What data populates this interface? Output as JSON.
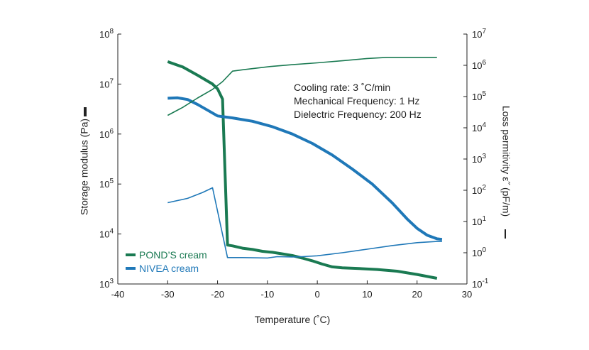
{
  "chart_data": {
    "type": "line",
    "x_axis": {
      "label": "Temperature (˚C)",
      "range": [
        -40,
        30
      ],
      "ticks": [
        -40,
        -30,
        -20,
        -10,
        0,
        10,
        20,
        30
      ],
      "tick_labels": [
        "-40",
        "-30",
        "-20",
        "-10",
        "0",
        "10",
        "20",
        "30"
      ]
    },
    "y_left": {
      "label": "Storage modulus (Pa)",
      "scale": "log",
      "range": [
        1000,
        100000000
      ],
      "ticks": [
        {
          "base": "10",
          "exp": "3"
        },
        {
          "base": "10",
          "exp": "4"
        },
        {
          "base": "10",
          "exp": "5"
        },
        {
          "base": "10",
          "exp": "6"
        },
        {
          "base": "10",
          "exp": "7"
        },
        {
          "base": "10",
          "exp": "8"
        }
      ]
    },
    "y_right": {
      "label": "Loss permitivity ε˝ (pF/m)",
      "scale": "log",
      "range": [
        0.1,
        10000000
      ],
      "ticks": [
        {
          "base": "10",
          "exp": "-1"
        },
        {
          "base": "10",
          "exp": "0"
        },
        {
          "base": "10",
          "exp": "1"
        },
        {
          "base": "10",
          "exp": "2"
        },
        {
          "base": "10",
          "exp": "3"
        },
        {
          "base": "10",
          "exp": "4"
        },
        {
          "base": "10",
          "exp": "5"
        },
        {
          "base": "10",
          "exp": "6"
        },
        {
          "base": "10",
          "exp": "7"
        }
      ]
    },
    "annotations": [
      "Cooling rate: 3 ˚C/min",
      "Mechanical Frequency: 1 Hz",
      "Dielectric Frequency: 200 Hz"
    ],
    "legend": {
      "placement": "bottom-left",
      "entries": [
        {
          "label": "POND’S cream",
          "color": "#1a7a52"
        },
        {
          "label": "NIVEA cream",
          "color": "#1f78b8"
        }
      ]
    },
    "series": [
      {
        "name": "POND’S cream",
        "measure": "Storage modulus",
        "axis": "left",
        "color": "#1a7a52",
        "line": "thick",
        "points": [
          [
            -30,
            28000000
          ],
          [
            -27,
            22000000
          ],
          [
            -24,
            15000000
          ],
          [
            -21,
            10000000
          ],
          [
            -20,
            8000000
          ],
          [
            -19,
            5000000
          ],
          [
            -18,
            6000
          ],
          [
            -17,
            5800
          ],
          [
            -15,
            5200
          ],
          [
            -13,
            4900
          ],
          [
            -11,
            4500
          ],
          [
            -9,
            4300
          ],
          [
            -7,
            4000
          ],
          [
            -5,
            3700
          ],
          [
            -3,
            3300
          ],
          [
            -1,
            2900
          ],
          [
            1,
            2500
          ],
          [
            3,
            2200
          ],
          [
            5,
            2100
          ],
          [
            8,
            2050
          ],
          [
            12,
            1950
          ],
          [
            16,
            1800
          ],
          [
            20,
            1550
          ],
          [
            24,
            1300
          ]
        ]
      },
      {
        "name": "NIVEA cream",
        "measure": "Storage modulus",
        "axis": "left",
        "color": "#1f78b8",
        "line": "thick",
        "points": [
          [
            -30,
            5200000
          ],
          [
            -28,
            5300000
          ],
          [
            -26,
            4900000
          ],
          [
            -24,
            3900000
          ],
          [
            -22,
            3000000
          ],
          [
            -20,
            2300000
          ],
          [
            -17,
            2100000
          ],
          [
            -13,
            1800000
          ],
          [
            -9,
            1400000
          ],
          [
            -5,
            1000000
          ],
          [
            -1,
            650000
          ],
          [
            3,
            380000
          ],
          [
            7,
            200000
          ],
          [
            11,
            100000
          ],
          [
            15,
            42000
          ],
          [
            18,
            20000
          ],
          [
            20,
            13000
          ],
          [
            22,
            9500
          ],
          [
            24,
            8000
          ],
          [
            25,
            7800
          ]
        ]
      },
      {
        "name": "POND’S cream",
        "measure": "Loss permitivity",
        "axis": "right",
        "color": "#1a7a52",
        "line": "thin",
        "points": [
          [
            -30,
            25000
          ],
          [
            -27,
            45000
          ],
          [
            -24,
            90000
          ],
          [
            -21,
            170000
          ],
          [
            -19,
            300000
          ],
          [
            -17,
            650000
          ],
          [
            -15,
            720000
          ],
          [
            -12,
            820000
          ],
          [
            -9,
            930000
          ],
          [
            -5,
            1050000
          ],
          [
            0,
            1200000
          ],
          [
            5,
            1400000
          ],
          [
            10,
            1650000
          ],
          [
            14,
            1800000
          ],
          [
            18,
            1800000
          ],
          [
            24,
            1800000
          ]
        ]
      },
      {
        "name": "NIVEA cream",
        "measure": "Loss permitivity",
        "axis": "right",
        "color": "#1f78b8",
        "line": "thin",
        "points": [
          [
            -30,
            40
          ],
          [
            -26,
            55
          ],
          [
            -23,
            85
          ],
          [
            -21,
            120
          ],
          [
            -18,
            0.7
          ],
          [
            -15,
            0.7
          ],
          [
            -10,
            0.68
          ],
          [
            -8,
            0.75
          ],
          [
            -5,
            0.73
          ],
          [
            -3,
            0.75
          ],
          [
            0,
            0.8
          ],
          [
            5,
            1.0
          ],
          [
            10,
            1.3
          ],
          [
            15,
            1.7
          ],
          [
            20,
            2.1
          ],
          [
            24,
            2.3
          ],
          [
            25,
            2.3
          ]
        ]
      }
    ]
  }
}
